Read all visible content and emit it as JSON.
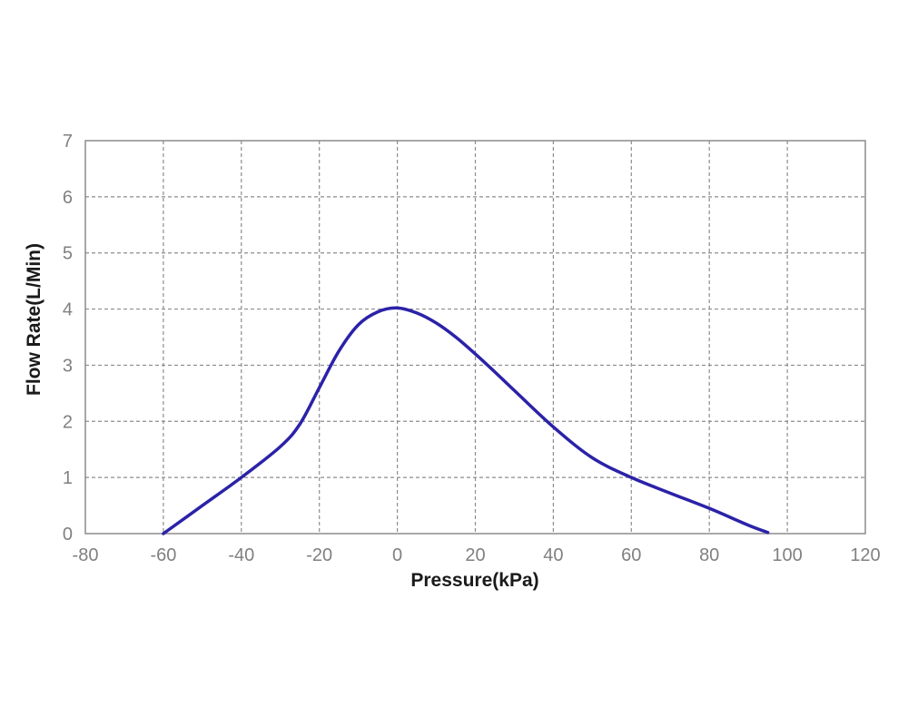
{
  "chart_data": {
    "type": "line",
    "title": "",
    "xlabel": "Pressure(kPa)",
    "ylabel": "Flow Rate(L/Min)",
    "xlim": [
      -80,
      120
    ],
    "ylim": [
      0,
      7
    ],
    "x_ticks": [
      -80,
      -60,
      -40,
      -20,
      0,
      20,
      40,
      60,
      80,
      100,
      120
    ],
    "y_ticks": [
      0,
      1,
      2,
      3,
      4,
      5,
      6,
      7
    ],
    "x_tick_labels": [
      "-80",
      "-60",
      "-40",
      "-20",
      "0",
      "20",
      "40",
      "60",
      "80",
      "100",
      "120"
    ],
    "y_tick_labels": [
      "0",
      "1",
      "2",
      "3",
      "4",
      "5",
      "6",
      "7"
    ],
    "grid": true,
    "legend": false,
    "series": [
      {
        "color": "#2b22a8",
        "x": [
          -60,
          -50,
          -40,
          -30,
          -25,
          -20,
          -15,
          -10,
          -5,
          0,
          5,
          10,
          15,
          20,
          25,
          30,
          40,
          50,
          60,
          70,
          80,
          90,
          95
        ],
        "y": [
          0,
          0.5,
          1.0,
          1.55,
          1.95,
          2.6,
          3.25,
          3.72,
          3.95,
          4.02,
          3.93,
          3.75,
          3.5,
          3.2,
          2.88,
          2.55,
          1.9,
          1.35,
          1.0,
          0.72,
          0.45,
          0.15,
          0.02
        ]
      }
    ]
  }
}
